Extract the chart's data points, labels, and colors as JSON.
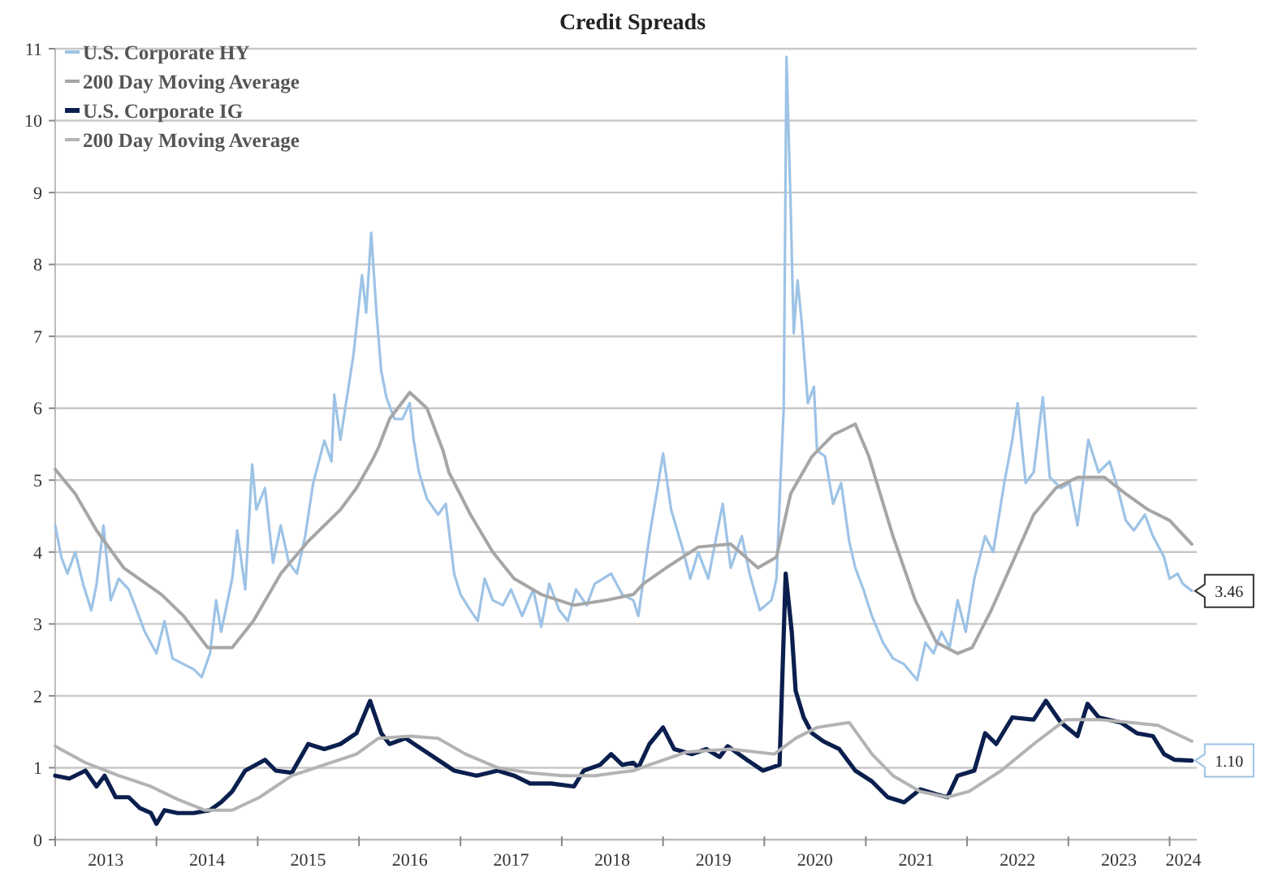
{
  "chart_data": {
    "type": "line",
    "title": "Credit Spreads",
    "xlim": [
      "2013-01-01",
      "2024-04-08"
    ],
    "xticks": [
      {
        "value": "2013-01-01",
        "label": null
      },
      {
        "value": "2013-07-02",
        "label": "2013"
      },
      {
        "value": "2014-01-01",
        "label": null
      },
      {
        "value": "2014-07-02",
        "label": "2014"
      },
      {
        "value": "2015-01-01",
        "label": null
      },
      {
        "value": "2015-07-02",
        "label": "2015"
      },
      {
        "value": "2016-01-01",
        "label": null
      },
      {
        "value": "2016-07-02",
        "label": "2016"
      },
      {
        "value": "2017-01-01",
        "label": null
      },
      {
        "value": "2017-07-02",
        "label": "2017"
      },
      {
        "value": "2018-01-01",
        "label": null
      },
      {
        "value": "2018-07-02",
        "label": "2018"
      },
      {
        "value": "2019-01-01",
        "label": null
      },
      {
        "value": "2019-07-02",
        "label": "2019"
      },
      {
        "value": "2020-01-01",
        "label": null
      },
      {
        "value": "2020-07-02",
        "label": "2020"
      },
      {
        "value": "2021-01-01",
        "label": null
      },
      {
        "value": "2021-07-02",
        "label": "2021"
      },
      {
        "value": "2022-01-01",
        "label": null
      },
      {
        "value": "2022-07-02",
        "label": "2022"
      },
      {
        "value": "2023-01-01",
        "label": null
      },
      {
        "value": "2023-07-02",
        "label": "2023"
      },
      {
        "value": "2024-01-01",
        "label": null
      },
      {
        "value": "2024-02-20",
        "label": "2024"
      }
    ],
    "ylim": [
      0,
      11
    ],
    "yticks": [
      0,
      1,
      2,
      3,
      4,
      5,
      6,
      7,
      8,
      9,
      10,
      11
    ],
    "grid": "y",
    "legend": "top left",
    "series": [
      {
        "name": "U.S. Corporate HY",
        "color": "#9dc3e6",
        "x": [
          "2013-01-01",
          "2013-01-23",
          "2013-02-14",
          "2013-03-14",
          "2013-04-12",
          "2013-05-11",
          "2013-05-30",
          "2013-06-24",
          "2013-07-20",
          "2013-08-18",
          "2013-09-23",
          "2013-10-22",
          "2013-11-20",
          "2014-01-01",
          "2014-01-30",
          "2014-02-28",
          "2014-04-09",
          "2014-05-15",
          "2014-06-13",
          "2014-07-13",
          "2014-08-04",
          "2014-08-22",
          "2014-10-01",
          "2014-10-19",
          "2014-11-17",
          "2014-12-12",
          "2014-12-27",
          "2015-01-27",
          "2015-02-25",
          "2015-03-25",
          "2015-04-23",
          "2015-05-22",
          "2015-06-21",
          "2015-07-20",
          "2015-08-29",
          "2015-09-24",
          "2015-10-04",
          "2015-10-26",
          "2015-12-12",
          "2016-01-12",
          "2016-01-27",
          "2016-02-14",
          "2016-03-04",
          "2016-03-21",
          "2016-04-09",
          "2016-05-08",
          "2016-06-06",
          "2016-07-02",
          "2016-07-16",
          "2016-08-04",
          "2016-09-02",
          "2016-10-12",
          "2016-11-09",
          "2016-12-09",
          "2017-01-01",
          "2017-02-06",
          "2017-03-04",
          "2017-03-29",
          "2017-04-27",
          "2017-06-03",
          "2017-07-02",
          "2017-08-11",
          "2017-09-20",
          "2017-10-19",
          "2017-11-17",
          "2017-12-23",
          "2018-01-23",
          "2018-02-21",
          "2018-04-01",
          "2018-04-30",
          "2018-06-28",
          "2018-08-07",
          "2018-09-16",
          "2018-10-04",
          "2018-11-13",
          "2018-12-12",
          "2019-01-01",
          "2019-01-30",
          "2019-03-11",
          "2019-04-09",
          "2019-05-08",
          "2019-06-13",
          "2019-08-04",
          "2019-09-02",
          "2019-10-12",
          "2019-11-09",
          "2019-12-16",
          "2020-01-27",
          "2020-02-14",
          "2020-02-28",
          "2020-03-11",
          "2020-03-21",
          "2020-04-05",
          "2020-04-16",
          "2020-04-30",
          "2020-05-15",
          "2020-06-06",
          "2020-06-28",
          "2020-07-09",
          "2020-08-07",
          "2020-09-05",
          "2020-10-04",
          "2020-11-02",
          "2020-11-24",
          "2020-12-23",
          "2021-01-23",
          "2021-03-04",
          "2021-04-09",
          "2021-05-19",
          "2021-07-05",
          "2021-08-04",
          "2021-09-02",
          "2021-10-01",
          "2021-10-30",
          "2021-11-28",
          "2021-12-27",
          "2022-01-27",
          "2022-03-07",
          "2022-04-05",
          "2022-05-15",
          "2022-06-13",
          "2022-07-02",
          "2022-07-31",
          "2022-08-29",
          "2022-10-01",
          "2022-10-26",
          "2022-12-05",
          "2023-01-05",
          "2023-02-03",
          "2023-03-14",
          "2023-04-20",
          "2023-05-30",
          "2023-06-28",
          "2023-07-27",
          "2023-08-25",
          "2023-10-04",
          "2023-11-02",
          "2023-12-12",
          "2024-01-01",
          "2024-01-30",
          "2024-02-17",
          "2024-03-21"
        ],
        "values": [
          4.37,
          3.93,
          3.7,
          4.0,
          3.55,
          3.19,
          3.55,
          4.37,
          3.33,
          3.63,
          3.48,
          3.19,
          2.89,
          2.59,
          3.04,
          2.52,
          2.44,
          2.37,
          2.26,
          2.59,
          3.33,
          2.89,
          3.63,
          4.3,
          3.48,
          5.22,
          4.59,
          4.89,
          3.85,
          4.37,
          3.85,
          3.7,
          4.22,
          4.96,
          5.55,
          5.26,
          6.19,
          5.56,
          6.74,
          7.85,
          7.33,
          8.44,
          7.33,
          6.52,
          6.15,
          5.85,
          5.85,
          6.07,
          5.56,
          5.11,
          4.74,
          4.52,
          4.67,
          3.7,
          3.41,
          3.19,
          3.04,
          3.63,
          3.33,
          3.26,
          3.48,
          3.11,
          3.48,
          2.96,
          3.56,
          3.19,
          3.04,
          3.48,
          3.26,
          3.56,
          3.7,
          3.41,
          3.33,
          3.11,
          4.22,
          4.89,
          5.37,
          4.59,
          4.07,
          3.63,
          4.0,
          3.63,
          4.67,
          3.78,
          4.22,
          3.7,
          3.19,
          3.33,
          3.63,
          4.96,
          6.0,
          10.89,
          8.81,
          7.04,
          7.78,
          7.19,
          6.07,
          6.3,
          5.41,
          5.33,
          4.67,
          4.96,
          4.15,
          3.78,
          3.48,
          3.11,
          2.74,
          2.52,
          2.44,
          2.22,
          2.74,
          2.59,
          2.89,
          2.67,
          3.33,
          2.89,
          3.63,
          4.22,
          4.0,
          4.96,
          5.56,
          6.07,
          4.96,
          5.11,
          6.15,
          5.04,
          4.89,
          4.96,
          4.37,
          5.56,
          5.11,
          5.26,
          4.89,
          4.44,
          4.3,
          4.52,
          4.22,
          3.93,
          3.63,
          3.7,
          3.56,
          3.46
        ]
      },
      {
        "name": "200 Day Moving Average",
        "color": "#a6a6a6",
        "x": [
          "2013-01-01",
          "2013-03-14",
          "2013-05-30",
          "2013-09-05",
          "2014-01-19",
          "2014-04-09",
          "2014-07-05",
          "2014-10-01",
          "2014-12-16",
          "2015-03-25",
          "2015-07-02",
          "2015-10-26",
          "2015-12-23",
          "2016-02-21",
          "2016-03-11",
          "2016-04-20",
          "2016-07-02",
          "2016-09-02",
          "2016-10-30",
          "2016-11-20",
          "2017-02-06",
          "2017-04-27",
          "2017-07-13",
          "2017-10-19",
          "2018-02-14",
          "2018-06-10",
          "2018-09-16",
          "2018-10-22",
          "2019-01-12",
          "2019-05-08",
          "2019-09-02",
          "2019-12-09",
          "2020-02-14",
          "2020-04-05",
          "2020-06-21",
          "2020-09-05",
          "2020-11-24",
          "2021-01-12",
          "2021-04-09",
          "2021-06-28",
          "2021-09-13",
          "2021-11-28",
          "2022-01-19",
          "2022-03-29",
          "2022-06-13",
          "2022-08-29",
          "2022-11-17",
          "2023-02-03",
          "2023-05-11",
          "2023-07-27",
          "2023-10-15",
          "2024-01-01",
          "2024-03-21"
        ],
        "values": [
          5.15,
          4.81,
          4.3,
          3.78,
          3.41,
          3.11,
          2.67,
          2.67,
          3.04,
          3.7,
          4.15,
          4.59,
          4.89,
          5.3,
          5.45,
          5.85,
          6.22,
          6.0,
          5.41,
          5.11,
          4.52,
          4.0,
          3.63,
          3.41,
          3.26,
          3.33,
          3.41,
          3.56,
          3.78,
          4.07,
          4.11,
          3.78,
          3.93,
          4.81,
          5.33,
          5.63,
          5.78,
          5.33,
          4.22,
          3.33,
          2.74,
          2.59,
          2.67,
          3.19,
          3.85,
          4.52,
          4.89,
          5.04,
          5.04,
          4.81,
          4.59,
          4.44,
          4.11
        ]
      },
      {
        "name": "U.S. Corporate IG",
        "color": "#0b1f4e",
        "x": [
          "2013-01-01",
          "2013-02-21",
          "2013-04-20",
          "2013-05-30",
          "2013-06-28",
          "2013-08-07",
          "2013-09-23",
          "2013-11-02",
          "2013-12-12",
          "2014-01-01",
          "2014-01-30",
          "2014-03-18",
          "2014-05-15",
          "2014-07-13",
          "2014-08-22",
          "2014-10-01",
          "2014-11-17",
          "2015-01-27",
          "2015-03-07",
          "2015-05-04",
          "2015-07-02",
          "2015-08-29",
          "2015-10-26",
          "2015-12-23",
          "2016-02-10",
          "2016-03-21",
          "2016-04-20",
          "2016-06-17",
          "2016-08-14",
          "2016-10-12",
          "2016-12-09",
          "2017-02-28",
          "2017-05-15",
          "2017-07-13",
          "2017-09-09",
          "2017-11-24",
          "2018-02-14",
          "2018-03-21",
          "2018-05-19",
          "2018-06-28",
          "2018-08-07",
          "2018-09-16",
          "2018-10-04",
          "2018-11-13",
          "2019-01-01",
          "2019-02-10",
          "2019-04-16",
          "2019-06-06",
          "2019-07-24",
          "2019-08-22",
          "2019-10-30",
          "2019-12-27",
          "2020-02-25",
          "2020-03-18",
          "2020-04-09",
          "2020-04-23",
          "2020-05-22",
          "2020-06-21",
          "2020-07-31",
          "2020-09-27",
          "2020-11-24",
          "2021-01-23",
          "2021-03-21",
          "2021-05-19",
          "2021-07-16",
          "2021-09-13",
          "2021-10-22",
          "2021-11-28",
          "2022-01-27",
          "2022-03-07",
          "2022-04-16",
          "2022-06-13",
          "2022-08-29",
          "2022-10-12",
          "2022-12-05",
          "2023-02-03",
          "2023-03-11",
          "2023-04-20",
          "2023-07-09",
          "2023-09-05",
          "2023-11-02",
          "2023-12-12",
          "2024-01-19",
          "2024-03-21"
        ],
        "values": [
          0.89,
          0.85,
          0.96,
          0.74,
          0.89,
          0.59,
          0.59,
          0.44,
          0.37,
          0.22,
          0.41,
          0.37,
          0.37,
          0.41,
          0.52,
          0.67,
          0.96,
          1.11,
          0.96,
          0.93,
          1.33,
          1.26,
          1.33,
          1.48,
          1.93,
          1.48,
          1.33,
          1.41,
          1.26,
          1.11,
          0.96,
          0.89,
          0.96,
          0.89,
          0.78,
          0.78,
          0.74,
          0.96,
          1.04,
          1.19,
          1.04,
          1.07,
          1.0,
          1.33,
          1.56,
          1.26,
          1.19,
          1.26,
          1.15,
          1.3,
          1.11,
          0.96,
          1.04,
          3.7,
          2.89,
          2.07,
          1.7,
          1.48,
          1.37,
          1.26,
          0.96,
          0.81,
          0.59,
          0.52,
          0.7,
          0.63,
          0.59,
          0.89,
          0.96,
          1.48,
          1.33,
          1.7,
          1.67,
          1.93,
          1.63,
          1.44,
          1.89,
          1.7,
          1.63,
          1.48,
          1.44,
          1.19,
          1.11,
          1.1
        ]
      },
      {
        "name": "200 Day Moving Average",
        "color": "#b3b3b3",
        "x": [
          "2013-01-01",
          "2013-04-20",
          "2013-08-18",
          "2013-12-12",
          "2014-03-18",
          "2014-06-24",
          "2014-10-01",
          "2015-01-08",
          "2015-05-04",
          "2015-08-29",
          "2015-12-23",
          "2016-03-11",
          "2016-07-05",
          "2016-10-12",
          "2017-01-19",
          "2017-05-15",
          "2017-09-09",
          "2018-01-05",
          "2018-04-30",
          "2018-09-16",
          "2018-11-13",
          "2019-03-29",
          "2019-09-02",
          "2020-02-06",
          "2020-04-23",
          "2020-07-09",
          "2020-11-02",
          "2021-01-23",
          "2021-04-09",
          "2021-07-16",
          "2021-10-22",
          "2022-01-08",
          "2022-05-04",
          "2022-08-29",
          "2022-12-23",
          "2023-04-20",
          "2023-08-14",
          "2023-11-20",
          "2024-03-21"
        ],
        "values": [
          1.3,
          1.07,
          0.89,
          0.74,
          0.56,
          0.41,
          0.41,
          0.59,
          0.89,
          1.04,
          1.19,
          1.41,
          1.44,
          1.41,
          1.19,
          1.0,
          0.93,
          0.89,
          0.89,
          0.96,
          1.04,
          1.22,
          1.26,
          1.19,
          1.41,
          1.56,
          1.63,
          1.19,
          0.89,
          0.67,
          0.59,
          0.67,
          0.96,
          1.33,
          1.67,
          1.67,
          1.63,
          1.59,
          1.37
        ]
      }
    ],
    "annotations": [
      {
        "text": "3.46",
        "x": "2024-03-21",
        "y": 3.46
      },
      {
        "text": "1.10",
        "x": "2024-03-21",
        "y": 1.1
      }
    ]
  }
}
